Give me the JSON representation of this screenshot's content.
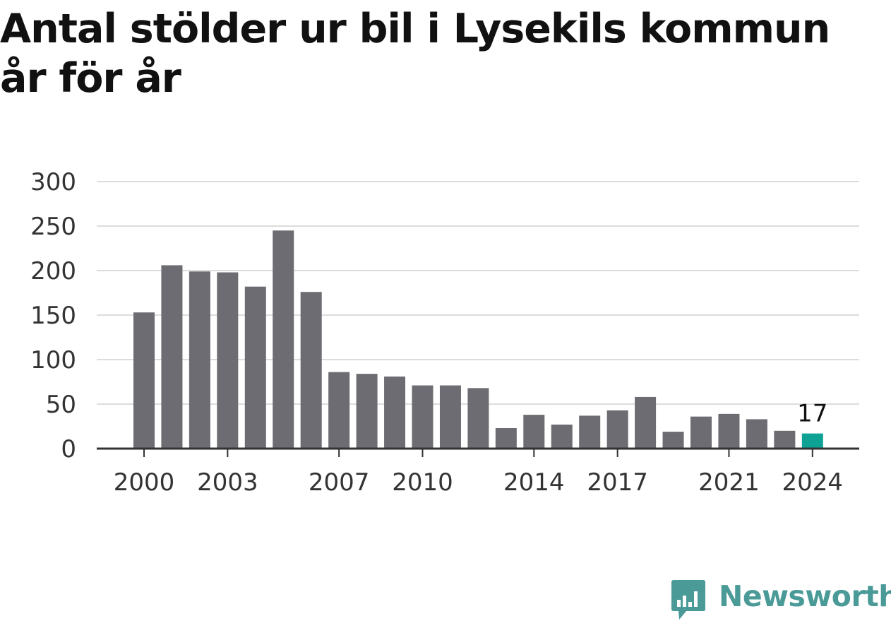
{
  "title": "Antal stölder ur bil i Lysekils kommun år för år",
  "chart_data": {
    "type": "bar",
    "title": "Antal stölder ur bil i Lysekils kommun år för år",
    "xlabel": "",
    "ylabel": "",
    "categories": [
      "2000",
      "2001",
      "2002",
      "2003",
      "2004",
      "2005",
      "2006",
      "2007",
      "2008",
      "2009",
      "2010",
      "2011",
      "2012",
      "2013",
      "2014",
      "2015",
      "2016",
      "2017",
      "2018",
      "2019",
      "2020",
      "2021",
      "2022",
      "2023",
      "2024"
    ],
    "values": [
      153,
      206,
      199,
      198,
      182,
      245,
      176,
      86,
      84,
      81,
      71,
      71,
      68,
      23,
      38,
      27,
      37,
      43,
      58,
      19,
      36,
      39,
      33,
      20,
      17
    ],
    "x_tick_labels": [
      "2000",
      "2003",
      "2007",
      "2010",
      "2014",
      "2017",
      "2021",
      "2024"
    ],
    "y_ticks": [
      0,
      50,
      100,
      150,
      200,
      250,
      300
    ],
    "ylim": [
      0,
      300
    ],
    "grid": true,
    "highlight_index": 24,
    "highlight_label": "17",
    "colors": {
      "bar": "#6d6c72",
      "highlight": "#0ea295",
      "grid": "#dcdcdc",
      "axis": "#333333",
      "tick_text": "#333333"
    }
  },
  "brand": {
    "name": "Newsworthy",
    "color": "#4a9a98",
    "icon": "bar-chart-speech-bubble-icon"
  }
}
